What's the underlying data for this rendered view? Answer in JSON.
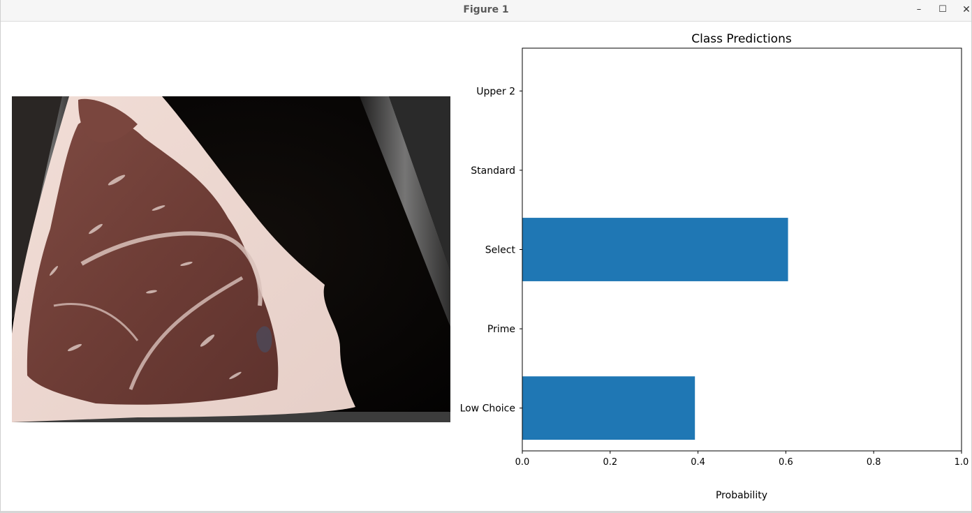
{
  "window": {
    "title": "Figure 1",
    "controls": {
      "minimize": "–",
      "maximize": "☐",
      "close": "✕"
    }
  },
  "image_panel": {
    "icon": "meat-cut-photo"
  },
  "chart_data": {
    "type": "bar",
    "orientation": "horizontal",
    "title": "Class Predictions",
    "xlabel": "Probability",
    "ylabel": "",
    "categories": [
      "Low Choice",
      "Prime",
      "Select",
      "Standard",
      "Upper 2"
    ],
    "values": [
      0.393,
      0.0,
      0.605,
      0.0,
      0.0
    ],
    "xlim": [
      0,
      1.0
    ],
    "xticks": [
      "0.0",
      "0.2",
      "0.4",
      "0.6",
      "0.8",
      "1.0"
    ],
    "bar_color": "#1f77b4",
    "grid": false,
    "legend": "none"
  }
}
